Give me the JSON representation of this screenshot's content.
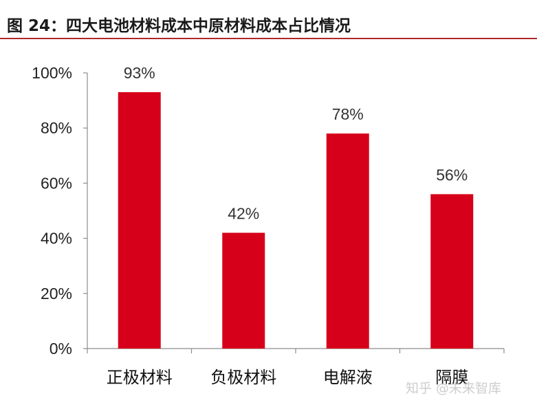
{
  "figure_title": "图 24：四大电池材料成本中原材料成本占比情况",
  "watermark": "知乎 @未来智库",
  "chart_data": {
    "type": "bar",
    "title": "",
    "xlabel": "",
    "ylabel": "",
    "categories": [
      "正极材料",
      "负极材料",
      "电解液",
      "隔膜"
    ],
    "values": [
      93,
      42,
      78,
      56
    ],
    "value_labels": [
      "93%",
      "42%",
      "78%",
      "56%"
    ],
    "ylim": [
      0,
      100
    ],
    "y_ticks": [
      0,
      20,
      40,
      60,
      80,
      100
    ],
    "y_tick_labels": [
      "0%",
      "20%",
      "40%",
      "60%",
      "80%",
      "100%"
    ],
    "grid": false,
    "legend": "none",
    "bar_color": "#d7001a"
  }
}
